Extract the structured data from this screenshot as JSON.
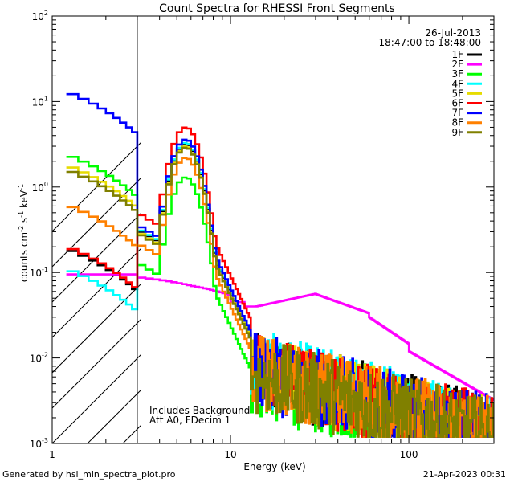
{
  "chart_data": {
    "type": "line",
    "title": "Count Spectra for RHESSI Front Segments",
    "xlabel": "Energy (keV)",
    "ylabel_parts": {
      "base": "counts cm",
      "exp1": "-2",
      "mid": " s",
      "exp2": "-1",
      "mid2": " keV",
      "exp3": "-1"
    },
    "xscale": "log",
    "yscale": "log",
    "xlim": [
      1,
      300
    ],
    "ylim": [
      0.001,
      100
    ],
    "x_ticks": [
      {
        "value": 1,
        "label": "1"
      },
      {
        "value": 10,
        "label": "10"
      },
      {
        "value": 100,
        "label": "100"
      }
    ],
    "y_ticks": [
      {
        "value": 0.001,
        "base": "10",
        "exp": "-3"
      },
      {
        "value": 0.01,
        "base": "10",
        "exp": "-2"
      },
      {
        "value": 0.1,
        "base": "10",
        "exp": "-1"
      },
      {
        "value": 1,
        "base": "10",
        "exp": "0"
      },
      {
        "value": 10,
        "base": "10",
        "exp": "1"
      },
      {
        "value": 100,
        "base": "10",
        "exp": "2"
      }
    ],
    "hatched_region_max_energy_keV": 3,
    "date": "26-Jul-2013",
    "time_range": "18:47:00 to 18:48:00",
    "annotations": [
      "Includes Background",
      "Att A0, FDecim 1"
    ],
    "footer_left": "Generated by hsi_min_spectra_plot.pro",
    "footer_right": "21-Apr-2023 00:31",
    "legend_position": "top-right",
    "series": [
      {
        "name": "1F",
        "color": "#000000",
        "low": 0.19,
        "peak": 3.2,
        "noise": 1.0
      },
      {
        "name": "2F",
        "color": "#ff00ff",
        "low": 0.095,
        "peak": 0,
        "noise": 0
      },
      {
        "name": "3F",
        "color": "#00ff00",
        "low": 2.4,
        "peak": 1.3,
        "noise": 0.8
      },
      {
        "name": "4F",
        "color": "#00ffff",
        "low": 0.11,
        "peak": 3.3,
        "noise": 1.1
      },
      {
        "name": "5F",
        "color": "#e6dc00",
        "low": 1.8,
        "peak": 3.0,
        "noise": 1.0
      },
      {
        "name": "6F",
        "color": "#ff0000",
        "low": 0.2,
        "peak": 5.0,
        "noise": 1.0
      },
      {
        "name": "7F",
        "color": "#0000ff",
        "low": 13.0,
        "peak": 3.6,
        "noise": 1.0
      },
      {
        "name": "8F",
        "color": "#ff8000",
        "low": 0.62,
        "peak": 2.2,
        "noise": 1.0
      },
      {
        "name": "9F",
        "color": "#808000",
        "low": 1.6,
        "peak": 2.9,
        "noise": 0.9
      }
    ]
  }
}
